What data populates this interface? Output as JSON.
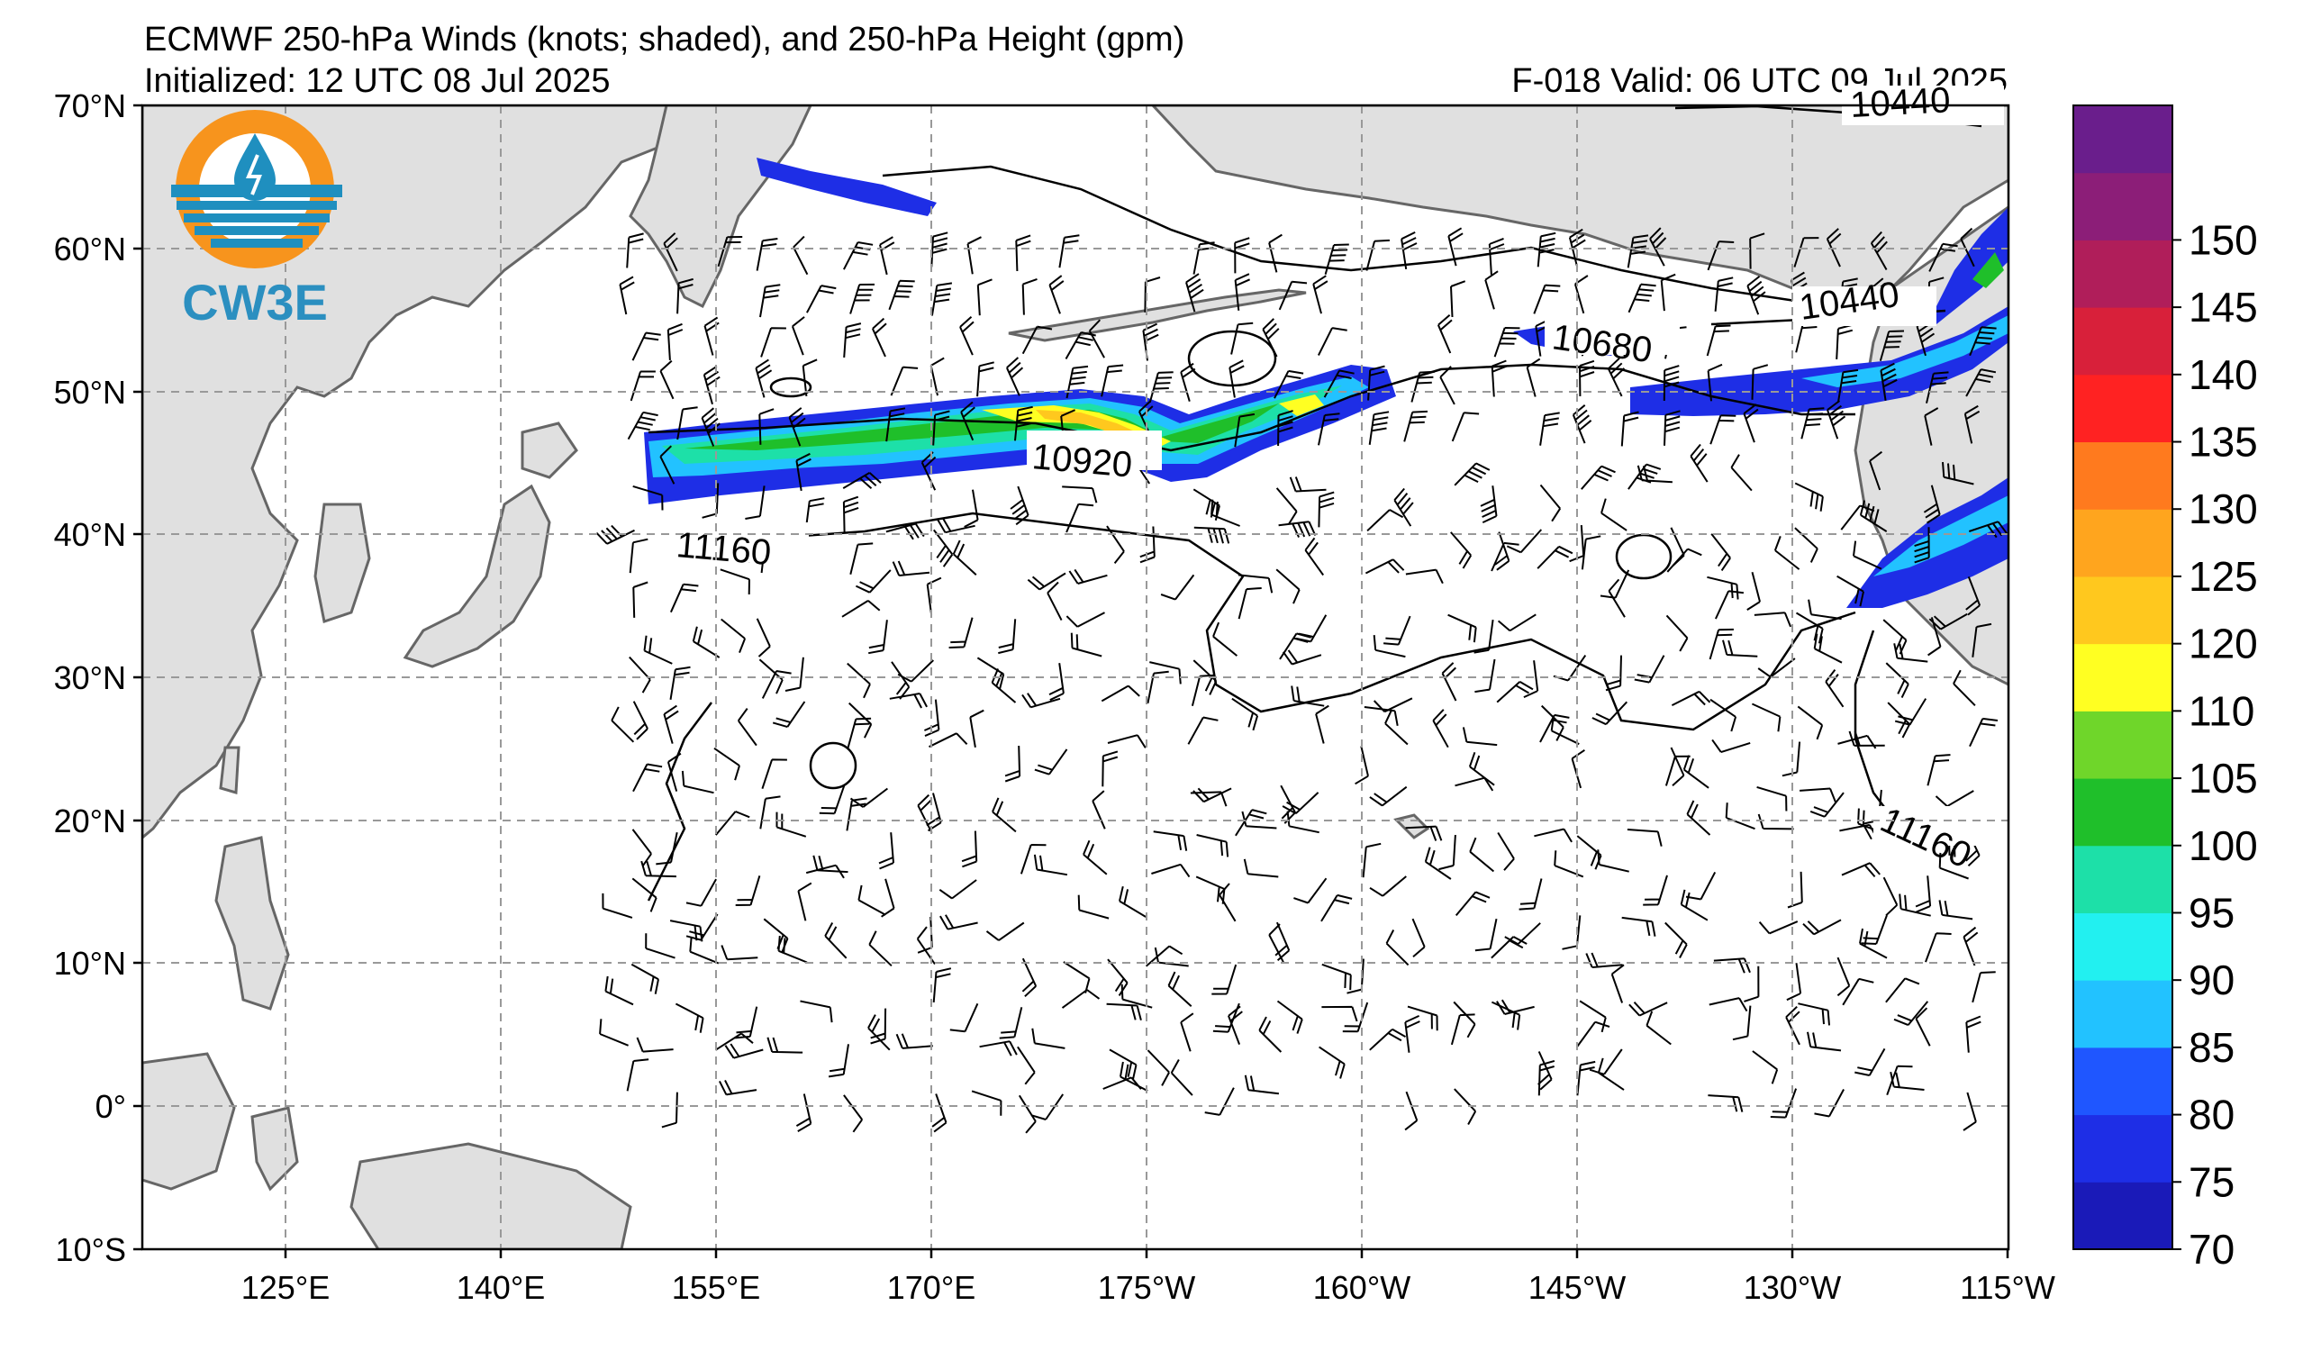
{
  "header": {
    "title": "ECMWF 250-hPa Winds (knots; shaded), and 250-hPa Height (gpm)",
    "initialized": "Initialized: 12 UTC 08 Jul 2025",
    "valid": "F-018  Valid: 06 UTC 09 Jul 2025"
  },
  "logo": {
    "text": "CW3E",
    "colors": {
      "sun": "#f7941d",
      "water": "#1f8fbf"
    }
  },
  "map": {
    "lat_labels": [
      "70°N",
      "60°N",
      "50°N",
      "40°N",
      "30°N",
      "20°N",
      "10°N",
      "0°",
      "10°S"
    ],
    "lon_labels": [
      "125°E",
      "140°E",
      "155°E",
      "170°E",
      "175°W",
      "160°W",
      "145°W",
      "130°W",
      "115°W"
    ],
    "land_color": "#e0e0e0",
    "coast_color": "#666666",
    "grid": "dashed",
    "contour_labels": [
      "10440",
      "10440",
      "10680",
      "10920",
      "11160",
      "11160"
    ]
  },
  "colorbar": {
    "levels": [
      "70",
      "75",
      "80",
      "85",
      "90",
      "95",
      "100",
      "105",
      "110",
      "120",
      "125",
      "130",
      "135",
      "140",
      "145",
      "150"
    ],
    "colors": [
      "#1a1ab8",
      "#1e2ee6",
      "#1f56ff",
      "#22c2ff",
      "#22f0f0",
      "#1de0a8",
      "#1fbf2a",
      "#6fd62a",
      "#ffff22",
      "#ffc81e",
      "#ffa51e",
      "#ff7a1e",
      "#ff2222",
      "#d8203a",
      "#b01e5a",
      "#8c1e78",
      "#6a1e8c"
    ]
  }
}
